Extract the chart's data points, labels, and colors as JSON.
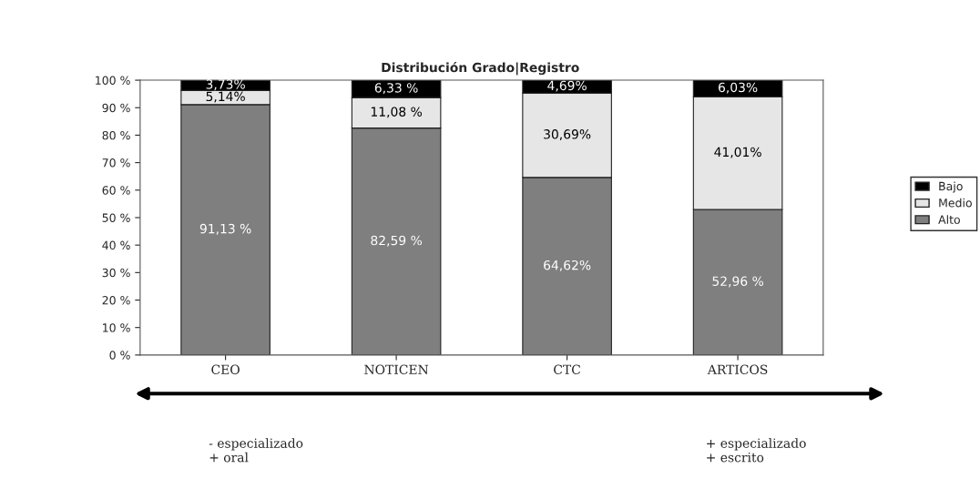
{
  "chart_data": {
    "type": "bar",
    "stacked": true,
    "title": "Distribución Grado|Registro",
    "categories": [
      "CEO",
      "NOTICEN",
      "CTC",
      "ARTICOS"
    ],
    "series": [
      {
        "name": "Alto",
        "color": "#7f7f7f",
        "values": [
          91.13,
          82.59,
          64.62,
          52.96
        ],
        "value_labels": [
          "91,13 %",
          "82,59 %",
          "64,62%",
          "52,96 %"
        ]
      },
      {
        "name": "Medio",
        "color": "#e6e6e6",
        "values": [
          5.14,
          11.08,
          30.69,
          41.01
        ],
        "value_labels": [
          "5,14%",
          "11,08 %",
          "30,69%",
          "41,01%"
        ]
      },
      {
        "name": "Bajo",
        "color": "#000000",
        "values": [
          3.73,
          6.33,
          4.69,
          6.03
        ],
        "value_labels": [
          "3,73%",
          "6,33 %",
          "4,69%",
          "6,03%"
        ]
      }
    ],
    "ylim": [
      0,
      100
    ],
    "yticks": [
      {
        "value": 0,
        "label": "0 %"
      },
      {
        "value": 10,
        "label": "10 %"
      },
      {
        "value": 20,
        "label": "20 %"
      },
      {
        "value": 30,
        "label": "30 %"
      },
      {
        "value": 40,
        "label": "40 %"
      },
      {
        "value": 50,
        "label": "50 %"
      },
      {
        "value": 60,
        "label": "60 %"
      },
      {
        "value": 70,
        "label": "70 %"
      },
      {
        "value": 80,
        "label": "80 %"
      },
      {
        "value": 90,
        "label": "90 %"
      },
      {
        "value": 100,
        "label": "100 %"
      }
    ],
    "legend": "right",
    "grid": false,
    "annotations": [
      "- especializado\n+ oral",
      "+ especializado\n+ escrito"
    ]
  }
}
